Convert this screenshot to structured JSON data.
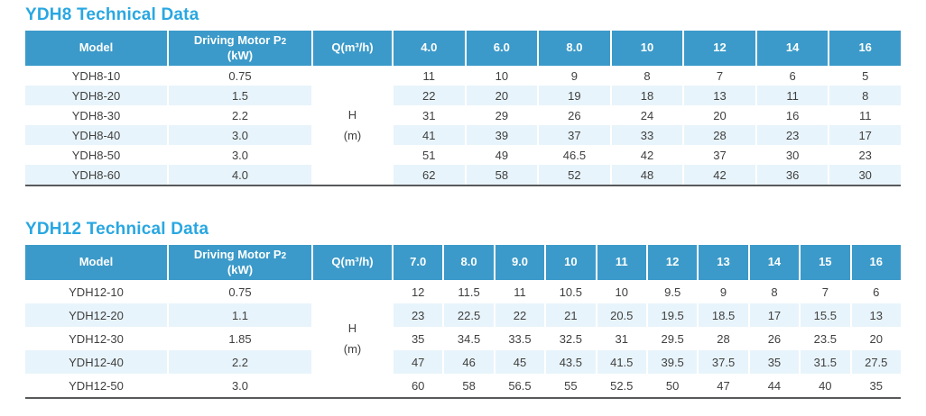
{
  "colors": {
    "title_text": "#29A7E1",
    "header_bg": "#3B9AC9",
    "header_text": "#FFFFFF",
    "stripe_bg": "#E8F4FB",
    "body_text": "#3F3F3F",
    "table_bottom_border": "#58595B"
  },
  "tables": [
    {
      "title": "YDH8 Technical Data",
      "header": {
        "model": "Model",
        "motor_label": "Driving Motor P",
        "motor_subscript": "2",
        "motor_unit": "(kW)",
        "q_label": "Q(m³/h)",
        "flow_columns": [
          "4.0",
          "6.0",
          "8.0",
          "10",
          "12",
          "14",
          "16"
        ]
      },
      "merged_unit": {
        "line1": "H",
        "line2": "(m)"
      },
      "rows": [
        {
          "model": "YDH8-10",
          "motor": "0.75",
          "values": [
            "11",
            "10",
            "9",
            "8",
            "7",
            "6",
            "5"
          ]
        },
        {
          "model": "YDH8-20",
          "motor": "1.5",
          "values": [
            "22",
            "20",
            "19",
            "18",
            "13",
            "11",
            "8"
          ]
        },
        {
          "model": "YDH8-30",
          "motor": "2.2",
          "values": [
            "31",
            "29",
            "26",
            "24",
            "20",
            "16",
            "11"
          ]
        },
        {
          "model": "YDH8-40",
          "motor": "3.0",
          "values": [
            "41",
            "39",
            "37",
            "33",
            "28",
            "23",
            "17"
          ]
        },
        {
          "model": "YDH8-50",
          "motor": "3.0",
          "values": [
            "51",
            "49",
            "46.5",
            "42",
            "37",
            "30",
            "23"
          ]
        },
        {
          "model": "YDH8-60",
          "motor": "4.0",
          "values": [
            "62",
            "58",
            "52",
            "48",
            "42",
            "36",
            "30"
          ]
        }
      ]
    },
    {
      "title": "YDH12 Technical Data",
      "header": {
        "model": "Model",
        "motor_label": "Driving Motor P",
        "motor_subscript": "2",
        "motor_unit": "(kW)",
        "q_label": "Q(m³/h)",
        "flow_columns": [
          "7.0",
          "8.0",
          "9.0",
          "10",
          "11",
          "12",
          "13",
          "14",
          "15",
          "16"
        ]
      },
      "merged_unit": {
        "line1": "H",
        "line2": "(m)"
      },
      "rows": [
        {
          "model": "YDH12-10",
          "motor": "0.75",
          "values": [
            "12",
            "11.5",
            "11",
            "10.5",
            "10",
            "9.5",
            "9",
            "8",
            "7",
            "6"
          ]
        },
        {
          "model": "YDH12-20",
          "motor": "1.1",
          "values": [
            "23",
            "22.5",
            "22",
            "21",
            "20.5",
            "19.5",
            "18.5",
            "17",
            "15.5",
            "13"
          ]
        },
        {
          "model": "YDH12-30",
          "motor": "1.85",
          "values": [
            "35",
            "34.5",
            "33.5",
            "32.5",
            "31",
            "29.5",
            "28",
            "26",
            "23.5",
            "20"
          ]
        },
        {
          "model": "YDH12-40",
          "motor": "2.2",
          "values": [
            "47",
            "46",
            "45",
            "43.5",
            "41.5",
            "39.5",
            "37.5",
            "35",
            "31.5",
            "27.5"
          ]
        },
        {
          "model": "YDH12-50",
          "motor": "3.0",
          "values": [
            "60",
            "58",
            "56.5",
            "55",
            "52.5",
            "50",
            "47",
            "44",
            "40",
            "35"
          ]
        }
      ]
    }
  ]
}
